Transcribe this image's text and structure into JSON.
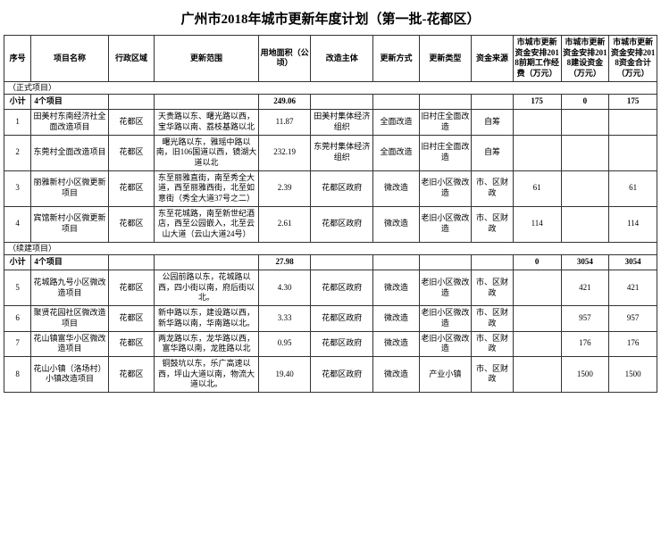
{
  "title": "广州市2018年城市更新年度计划（第一批-花都区）",
  "headers": {
    "seq": "序号",
    "name": "项目名称",
    "region": "行政区域",
    "scope": "更新范围",
    "area": "用地面积（公顷）",
    "body": "改造主体",
    "method": "更新方式",
    "type": "更新类型",
    "source": "资金来源",
    "fund1": "市城市更新资金安排2018前期工作经费（万元）",
    "fund2": "市城市更新资金安排2018建设资金（万元）",
    "fund3": "市城市更新资金安排2018资金合计（万元）"
  },
  "section1": {
    "label": "（正式项目）",
    "subtotal": {
      "label": "小计",
      "count": "4个项目",
      "area": "249.06",
      "fund1": "175",
      "fund2": "0",
      "fund3": "175"
    },
    "rows": [
      {
        "seq": "1",
        "name": "田美村东南经济社全面改造项目",
        "region": "花都区",
        "scope": "天贵路以东、曙光路以西，宝华路以南、荔枝基路以北",
        "area": "11.87",
        "body": "田美村集体经济组织",
        "method": "全面改造",
        "type": "旧村庄全面改造",
        "source": "自筹",
        "f1": "",
        "f2": "",
        "f3": ""
      },
      {
        "seq": "2",
        "name": "东莞村全面改造项目",
        "region": "花都区",
        "scope": "曙光路以东，雅瑶中路以南，旧106国道以西，镜湖大道以北",
        "area": "232.19",
        "body": "东莞村集体经济组织",
        "method": "全面改造",
        "type": "旧村庄全面改造",
        "source": "自筹",
        "f1": "",
        "f2": "",
        "f3": ""
      },
      {
        "seq": "3",
        "name": "丽雅新村小区微更新项目",
        "region": "花都区",
        "scope": "东至丽雅直街，南至秀全大道，西至丽雅西街，北至如意街（秀全大道37号之二）",
        "area": "2.39",
        "body": "花都区政府",
        "method": "微改造",
        "type": "老旧小区微改造",
        "source": "市、区财政",
        "f1": "61",
        "f2": "",
        "f3": "61"
      },
      {
        "seq": "4",
        "name": "宾馆新村小区微更新项目",
        "region": "花都区",
        "scope": "东至花城路，南至新世纪酒店，西至公园嵌入，北至云山大道（云山大道24号）",
        "area": "2.61",
        "body": "花都区政府",
        "method": "微改造",
        "type": "老旧小区微改造",
        "source": "市、区财政",
        "f1": "114",
        "f2": "",
        "f3": "114"
      }
    ]
  },
  "section2": {
    "label": "（续建项目）",
    "subtotal": {
      "label": "小计",
      "count": "4个项目",
      "area": "27.98",
      "fund1": "0",
      "fund2": "3054",
      "fund3": "3054"
    },
    "rows": [
      {
        "seq": "5",
        "name": "花城路九号小区微改造项目",
        "region": "花都区",
        "scope": "公园前路以东，花城路以西，四小街以南，府后街以北。",
        "area": "4.30",
        "body": "花都区政府",
        "method": "微改造",
        "type": "老旧小区微改造",
        "source": "市、区财政",
        "f1": "",
        "f2": "421",
        "f3": "421"
      },
      {
        "seq": "6",
        "name": "聚贤花园社区微改造项目",
        "region": "花都区",
        "scope": "新中路以东，建设路以西，新华路以南，华南路以北。",
        "area": "3.33",
        "body": "花都区政府",
        "method": "微改造",
        "type": "老旧小区微改造",
        "source": "市、区财政",
        "f1": "",
        "f2": "957",
        "f3": "957"
      },
      {
        "seq": "7",
        "name": "花山镇富华小区微改造项目",
        "region": "花都区",
        "scope": "两龙路以东，龙华路以西，富华路以南，龙胜路以北",
        "area": "0.95",
        "body": "花都区政府",
        "method": "微改造",
        "type": "老旧小区微改造",
        "source": "市、区财政",
        "f1": "",
        "f2": "176",
        "f3": "176"
      },
      {
        "seq": "8",
        "name": "花山小镇（洛场村）小镇改造项目",
        "region": "花都区",
        "scope": "铜鼓坑以东，乐广高速以西，坪山大道以南，物流大道以北。",
        "area": "19.40",
        "body": "花都区政府",
        "method": "微改造",
        "type": "产业小镇",
        "source": "市、区财政",
        "f1": "",
        "f2": "1500",
        "f3": "1500"
      }
    ]
  }
}
